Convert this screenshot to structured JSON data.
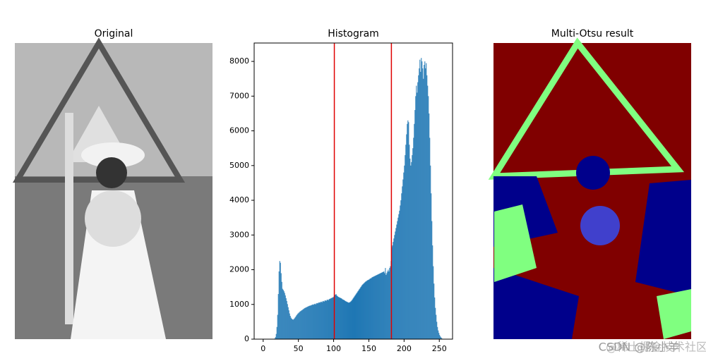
{
  "chart_data": [
    {
      "type": "image",
      "title": "Original"
    },
    {
      "type": "histogram",
      "title": "Histogram",
      "color": "#1f77b4",
      "bins": [
        0,
        1,
        2,
        3,
        4,
        5,
        6,
        7,
        8,
        9,
        10,
        11,
        12,
        13,
        14,
        15,
        16,
        17,
        18,
        19,
        20,
        21,
        22,
        23,
        24,
        25,
        26,
        27,
        28,
        29,
        30,
        31,
        32,
        33,
        34,
        35,
        36,
        37,
        38,
        39,
        40,
        41,
        42,
        43,
        44,
        45,
        46,
        47,
        48,
        49,
        50,
        51,
        52,
        53,
        54,
        55,
        56,
        57,
        58,
        59,
        60,
        61,
        62,
        63,
        64,
        65,
        66,
        67,
        68,
        69,
        70,
        71,
        72,
        73,
        74,
        75,
        76,
        77,
        78,
        79,
        80,
        81,
        82,
        83,
        84,
        85,
        86,
        87,
        88,
        89,
        90,
        91,
        92,
        93,
        94,
        95,
        96,
        97,
        98,
        99,
        100,
        101,
        102,
        103,
        104,
        105,
        106,
        107,
        108,
        109,
        110,
        111,
        112,
        113,
        114,
        115,
        116,
        117,
        118,
        119,
        120,
        121,
        122,
        123,
        124,
        125,
        126,
        127,
        128,
        129,
        130,
        131,
        132,
        133,
        134,
        135,
        136,
        137,
        138,
        139,
        140,
        141,
        142,
        143,
        144,
        145,
        146,
        147,
        148,
        149,
        150,
        151,
        152,
        153,
        154,
        155,
        156,
        157,
        158,
        159,
        160,
        161,
        162,
        163,
        164,
        165,
        166,
        167,
        168,
        169,
        170,
        171,
        172,
        173,
        174,
        175,
        176,
        177,
        178,
        179,
        180,
        181,
        182,
        183,
        184,
        185,
        186,
        187,
        188,
        189,
        190,
        191,
        192,
        193,
        194,
        195,
        196,
        197,
        198,
        199,
        200,
        201,
        202,
        203,
        204,
        205,
        206,
        207,
        208,
        209,
        210,
        211,
        212,
        213,
        214,
        215,
        216,
        217,
        218,
        219,
        220,
        221,
        222,
        223,
        224,
        225,
        226,
        227,
        228,
        229,
        230,
        231,
        232,
        233,
        234,
        235,
        236,
        237,
        238,
        239,
        240,
        241,
        242,
        243,
        244,
        245,
        246,
        247,
        248,
        249,
        250,
        251,
        252,
        253,
        254,
        255,
        256
      ],
      "values": [
        0,
        0,
        0,
        0,
        0,
        0,
        0,
        0,
        0,
        0,
        0,
        0,
        0,
        0,
        0,
        5,
        20,
        60,
        150,
        350,
        700,
        1300,
        1950,
        2250,
        2200,
        1900,
        1650,
        1450,
        1420,
        1380,
        1330,
        1260,
        1180,
        1100,
        1010,
        920,
        830,
        740,
        670,
        620,
        590,
        570,
        560,
        580,
        600,
        630,
        660,
        690,
        720,
        740,
        760,
        780,
        800,
        810,
        830,
        840,
        860,
        870,
        890,
        900,
        910,
        920,
        930,
        940,
        950,
        960,
        965,
        970,
        980,
        990,
        1000,
        990,
        1010,
        1020,
        1000,
        1030,
        1040,
        1030,
        1050,
        1060,
        1050,
        1070,
        1080,
        1060,
        1090,
        1100,
        1080,
        1110,
        1120,
        1100,
        1130,
        1140,
        1120,
        1150,
        1160,
        1170,
        1180,
        1190,
        1200,
        1210,
        1230,
        1260,
        1280,
        1300,
        1260,
        1240,
        1220,
        1210,
        1200,
        1190,
        1180,
        1170,
        1150,
        1140,
        1130,
        1120,
        1100,
        1090,
        1080,
        1070,
        1060,
        1050,
        1060,
        1070,
        1090,
        1110,
        1140,
        1170,
        1200,
        1230,
        1260,
        1290,
        1320,
        1350,
        1380,
        1410,
        1440,
        1470,
        1500,
        1530,
        1560,
        1580,
        1600,
        1620,
        1640,
        1660,
        1670,
        1690,
        1700,
        1710,
        1720,
        1740,
        1750,
        1760,
        1780,
        1790,
        1800,
        1810,
        1820,
        1830,
        1840,
        1850,
        1860,
        1870,
        1880,
        1890,
        1900,
        1910,
        1920,
        1930,
        1940,
        1950,
        1900,
        2050,
        1850,
        1900,
        1950,
        2000,
        1950,
        2050,
        2100,
        2250,
        2650,
        2700,
        2800,
        2900,
        3000,
        3100,
        3200,
        3300,
        3400,
        3500,
        3600,
        3700,
        3850,
        4000,
        4200,
        4400,
        4600,
        4800,
        5000,
        5300,
        5600,
        5900,
        6200,
        6300,
        6250,
        5600,
        5200,
        5000,
        5100,
        5300,
        5500,
        5800,
        6200,
        6600,
        7000,
        7300,
        7100,
        7400,
        7600,
        7800,
        8050,
        7700,
        8100,
        8000,
        7800,
        7500,
        7900,
        8000,
        7800,
        7950,
        7600,
        7300,
        7000,
        6500,
        5800,
        5000,
        4200,
        3400,
        2700,
        2100,
        1600,
        1200,
        900,
        700,
        500,
        350,
        250,
        180,
        120,
        80,
        50,
        30,
        10,
        5
      ],
      "thresholds": [
        101,
        182
      ],
      "threshold_color": "#e00000",
      "xlim": [
        -12.8,
        268.8
      ],
      "xticks": [
        0,
        50,
        100,
        150,
        200,
        250
      ],
      "ylim": [
        0,
        8530
      ],
      "yticks": [
        0,
        1000,
        2000,
        3000,
        4000,
        5000,
        6000,
        7000,
        8000
      ]
    },
    {
      "type": "image",
      "title": "Multi-Otsu result"
    }
  ],
  "watermarks": [
    "@稀土掘金技术社区",
    "CSDN @陈小羊"
  ]
}
